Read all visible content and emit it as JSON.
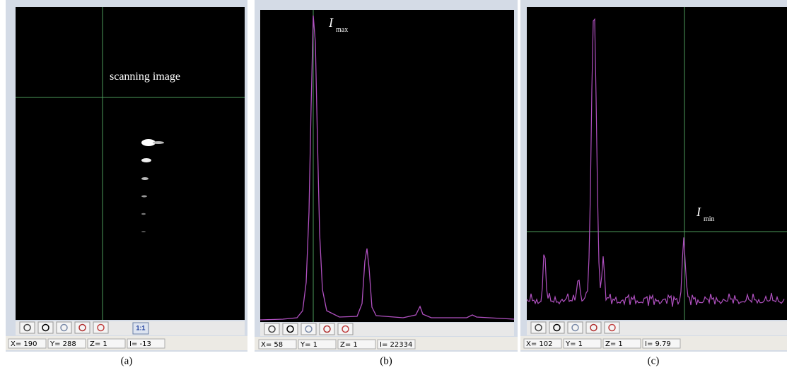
{
  "panels": [
    {
      "caption": "(a)",
      "label": "scanning image",
      "toolbar_button": "1:1",
      "status": [
        "X= 190",
        "Y= 288",
        "Z= 1",
        "I= -13"
      ]
    },
    {
      "caption": "(b)",
      "label": {
        "symbol": "I",
        "subscript": "max"
      },
      "status": [
        "X= 58",
        "Y= 1",
        "Z= 1",
        "I= 22334"
      ]
    },
    {
      "caption": "(c)",
      "label": {
        "symbol": "I",
        "subscript": "min"
      },
      "status": [
        "X= 102",
        "Y= 1",
        "Z= 1",
        "I= 9.79"
      ]
    }
  ]
}
